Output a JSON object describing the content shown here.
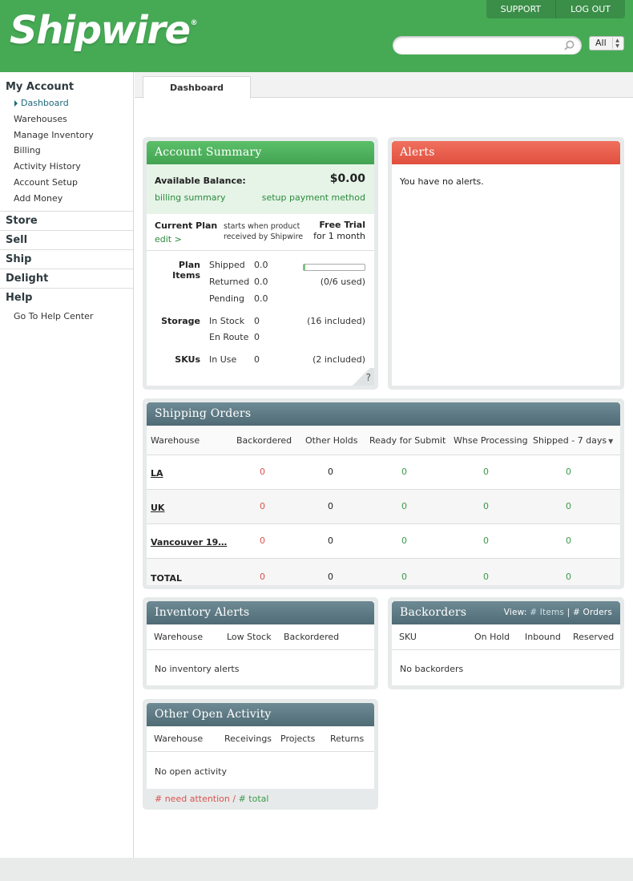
{
  "header": {
    "logo": "Shipwire",
    "logo_mark": "®",
    "nav": [
      "SUPPORT",
      "LOG OUT"
    ],
    "search_placeholder": "",
    "scope": "All"
  },
  "sidebar": {
    "my_account": "My Account",
    "items": [
      "Dashboard",
      "Warehouses",
      "Manage Inventory",
      "Billing",
      "Activity History",
      "Account Setup",
      "Add Money"
    ],
    "sections": [
      "Store",
      "Sell",
      "Ship",
      "Delight",
      "Help"
    ],
    "help_items": [
      "Go To Help Center"
    ]
  },
  "tabs": [
    "Dashboard"
  ],
  "account_summary": {
    "title": "Account Summary",
    "balance_label": "Available Balance:",
    "balance": "$0.00",
    "billing_link": "billing summary",
    "payment_link": "setup payment method",
    "plan_label": "Current Plan",
    "edit_link": "edit >",
    "plan_desc_1": "starts when product",
    "plan_desc_2": "received by Shipwire",
    "plan_name": "Free Trial",
    "plan_term": "for 1 month",
    "plan_items_label": "Plan Items",
    "shipped_label": "Shipped",
    "shipped_value": "0.0",
    "returned_label": "Returned",
    "returned_value": "0.0",
    "used_text": "(0/6 used)",
    "usage_fraction": 0.0,
    "pending_label": "Pending",
    "pending_value": "0.0",
    "storage_label": "Storage",
    "in_stock_label": "In Stock",
    "in_stock_value": "0",
    "storage_included": "(16 included)",
    "en_route_label": "En Route",
    "en_route_value": "0",
    "skus_label": "SKUs",
    "in_use_label": "In Use",
    "in_use_value": "0",
    "skus_included": "(2 included)",
    "help_glyph": "?"
  },
  "alerts": {
    "title": "Alerts",
    "message": "You have no alerts."
  },
  "shipping_orders": {
    "title": "Shipping Orders",
    "columns": [
      "Warehouse",
      "Backordered",
      "Other Holds",
      "Ready for Submit",
      "Whse Processing",
      "Shipped - 7 days"
    ],
    "rows": [
      {
        "warehouse": "LA",
        "backordered": "0",
        "other_holds": "0",
        "ready": "0",
        "processing": "0",
        "shipped": "0"
      },
      {
        "warehouse": "UK",
        "backordered": "0",
        "other_holds": "0",
        "ready": "0",
        "processing": "0",
        "shipped": "0"
      },
      {
        "warehouse": "Vancouver 19…",
        "backordered": "0",
        "other_holds": "0",
        "ready": "0",
        "processing": "0",
        "shipped": "0"
      },
      {
        "warehouse": "TOTAL",
        "backordered": "0",
        "other_holds": "0",
        "ready": "0",
        "processing": "0",
        "shipped": "0"
      }
    ]
  },
  "inventory_alerts": {
    "title": "Inventory Alerts",
    "columns": [
      "Warehouse",
      "Low Stock",
      "Backordered"
    ],
    "empty": "No inventory alerts"
  },
  "backorders": {
    "title": "Backorders",
    "view_label": "View:",
    "view_items": "# Items",
    "view_sep": "|",
    "view_orders": "# Orders",
    "columns": [
      "SKU",
      "On Hold",
      "Inbound",
      "Reserved"
    ],
    "empty": "No backorders"
  },
  "other_activity": {
    "title": "Other Open Activity",
    "columns": [
      "Warehouse",
      "Receivings",
      "Projects",
      "Returns"
    ],
    "empty": "No open activity",
    "legend_attention": "# need attention /",
    "legend_total": "# total"
  },
  "colors": {
    "brand_green": "#46aa55",
    "alert_red": "#e14f3e",
    "slate_header": "#5a7781"
  }
}
